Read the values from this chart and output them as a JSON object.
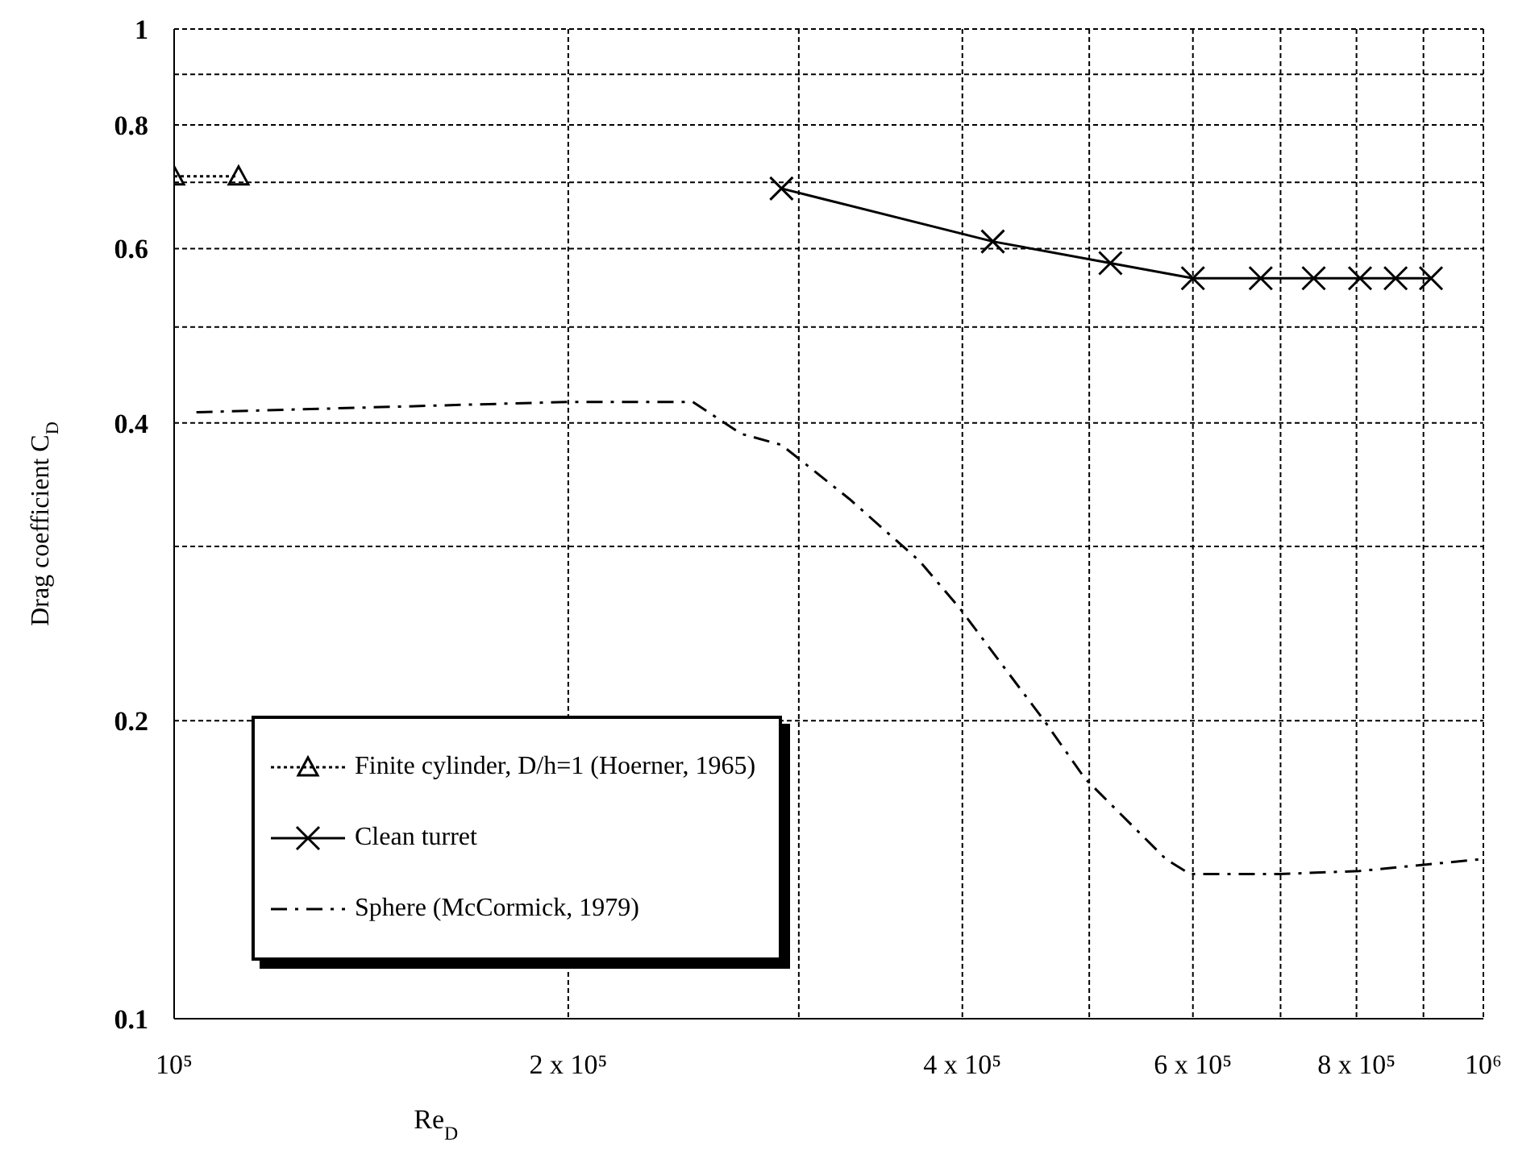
{
  "chart_data": {
    "type": "line",
    "xlabel": "Re$_{D}$",
    "ylabel": "Drag coefficient  C$_{D}$",
    "log": "xy",
    "grid": true,
    "legend": "bottom left",
    "xlim": [
      100000,
      1000000
    ],
    "xticks": [
      {
        "value": 100000,
        "label": "10⁵"
      },
      {
        "value": 200000,
        "label": "2 x 10⁵"
      },
      {
        "value": 300000,
        "label": null
      },
      {
        "value": 400000,
        "label": "4 x 10⁵"
      },
      {
        "value": 500000,
        "label": null
      },
      {
        "value": 600000,
        "label": "6 x 10⁵"
      },
      {
        "value": 700000,
        "label": null
      },
      {
        "value": 800000,
        "label": "8 x 10⁵"
      },
      {
        "value": 900000,
        "label": null
      },
      {
        "value": 1000000,
        "label": "10⁶"
      }
    ],
    "ylim": [
      0.1,
      1
    ],
    "yticks": [
      0.1,
      0.2,
      {
        "value": 0.3,
        "label": null
      },
      0.4,
      {
        "value": 0.5,
        "label": null
      },
      0.6,
      {
        "value": 0.7,
        "label": null
      },
      0.8,
      {
        "value": 0.9,
        "label": null
      },
      1
    ],
    "series": [
      {
        "name": "Finite cylinder, D/h=1 (Hoerner, 1965)",
        "color": "#000000",
        "marker": "triangle",
        "line_style": "dotted",
        "x": [
          100000,
          112000
        ],
        "values": [
          0.71,
          0.71
        ]
      },
      {
        "name": "Clean turret",
        "color": "#000000",
        "marker": "cross",
        "line_style": "solid",
        "x": [
          291000,
          422000,
          519000,
          600000,
          676000,
          742000,
          805000,
          857000,
          912000
        ],
        "values": [
          0.69,
          0.61,
          0.58,
          0.56,
          0.56,
          0.56,
          0.56,
          0.56,
          0.56
        ]
      },
      {
        "name": "Sphere (McCormick, 1979)",
        "color": "#000000",
        "marker": "none",
        "line_style": "dashed",
        "x": [
          104000,
          200000,
          249000,
          271000,
          291000,
          328000,
          371000,
          398000,
          462000,
          496000,
          572000,
          597000,
          698000,
          804000,
          1000000
        ],
        "values": [
          0.41,
          0.42,
          0.42,
          0.39,
          0.38,
          0.335,
          0.29,
          0.26,
          0.2,
          0.175,
          0.145,
          0.14,
          0.14,
          0.141,
          0.145
        ]
      }
    ]
  }
}
